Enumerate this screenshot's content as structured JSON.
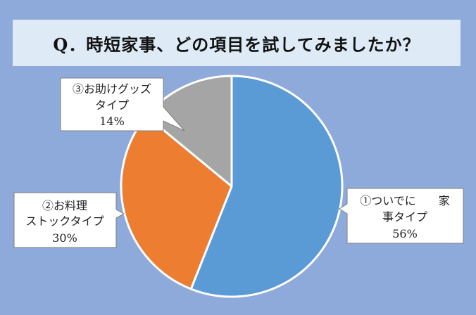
{
  "title": "Q．時短家事、どの項目を試してみましたか？",
  "colors": {
    "background": "#8eaadb",
    "title_bg": "#deebf7",
    "slice_1": "#5b9bd5",
    "slice_2": "#ed7d31",
    "slice_3": "#a5a5a5"
  },
  "chart_data": {
    "type": "pie",
    "title": "Q．時短家事、どの項目を試してみましたか？",
    "start_angle_deg": 0,
    "direction": "clockwise",
    "slices": [
      {
        "label": "①ついでに　　家事タイプ",
        "label_lines": [
          "①ついでに　　家",
          "事タイプ"
        ],
        "value": 56,
        "value_label": "56%",
        "color": "#5b9bd5"
      },
      {
        "label": "②お料理ストックタイプ",
        "label_lines": [
          "②お料理",
          "ストックタイプ"
        ],
        "value": 30,
        "value_label": "30%",
        "color": "#ed7d31"
      },
      {
        "label": "③お助けグッズタイプ",
        "label_lines": [
          "③お助けグッズ",
          "タイプ"
        ],
        "value": 14,
        "value_label": "14%",
        "color": "#a5a5a5"
      }
    ]
  }
}
